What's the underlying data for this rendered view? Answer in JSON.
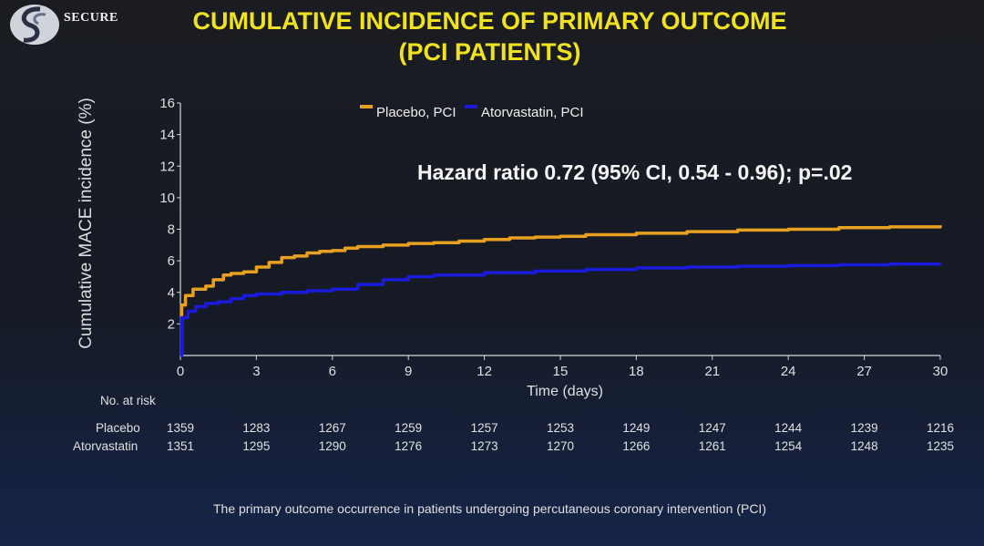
{
  "logo": {
    "text": "SECURE",
    "icon": "secure-trial-logo"
  },
  "title": {
    "line1": "CUMULATIVE INCIDENCE OF PRIMARY OUTCOME",
    "line2": "(PCI PATIENTS)"
  },
  "annotation": "Hazard ratio 0.72 (95% CI, 0.54 - 0.96); p=.02",
  "risk_table": {
    "title": "No. at risk",
    "rows": [
      {
        "label": "Placebo",
        "values": [
          "1359",
          "1283",
          "1267",
          "1259",
          "1257",
          "1253",
          "1249",
          "1247",
          "1244",
          "1239",
          "1216"
        ]
      },
      {
        "label": "Atorvastatin",
        "values": [
          "1351",
          "1295",
          "1290",
          "1276",
          "1273",
          "1270",
          "1266",
          "1261",
          "1254",
          "1248",
          "1235"
        ]
      }
    ]
  },
  "footnote": "The primary outcome occurrence in patients undergoing percutaneous coronary intervention (PCI)",
  "colors": {
    "title": "#f0e21c",
    "placebo": "#e8a020",
    "atorvastatin": "#1a1adc",
    "axis": "#d8d8d8"
  },
  "chart_data": {
    "type": "line",
    "xlabel": "Time (days)",
    "ylabel": "Cumulative MACE incidence (%)",
    "xlim": [
      0,
      30
    ],
    "ylim": [
      0,
      16
    ],
    "xticks": [
      "0",
      "3",
      "6",
      "9",
      "12",
      "15",
      "18",
      "21",
      "24",
      "27",
      "30"
    ],
    "yticks": [
      "2",
      "4",
      "6",
      "8",
      "10",
      "12",
      "14",
      "16"
    ],
    "legend_position": "top-center",
    "series": [
      {
        "name": "Placebo, PCI",
        "color": "#e8a020",
        "x": [
          0,
          0.05,
          0.2,
          0.5,
          1,
          1.3,
          1.7,
          2,
          2.5,
          3,
          3.5,
          4,
          4.5,
          5,
          5.5,
          6,
          6.5,
          7,
          8,
          9,
          10,
          11,
          12,
          13,
          14,
          15,
          16,
          18,
          20,
          22,
          24,
          26,
          28,
          30
        ],
        "y": [
          0,
          3.2,
          3.8,
          4.2,
          4.4,
          4.8,
          5.1,
          5.2,
          5.3,
          5.6,
          5.9,
          6.2,
          6.3,
          6.5,
          6.6,
          6.65,
          6.8,
          6.9,
          7.0,
          7.1,
          7.15,
          7.25,
          7.35,
          7.45,
          7.5,
          7.55,
          7.65,
          7.75,
          7.85,
          7.95,
          8.0,
          8.1,
          8.15,
          8.25
        ]
      },
      {
        "name": "Atorvastatin, PCI",
        "color": "#1a1adc",
        "x": [
          0,
          0.05,
          0.3,
          0.6,
          1,
          1.5,
          2,
          2.5,
          3,
          4,
          5,
          6,
          7,
          8,
          9,
          10,
          12,
          14,
          16,
          18,
          20,
          22,
          24,
          26,
          28,
          30
        ],
        "y": [
          0,
          2.4,
          2.8,
          3.1,
          3.3,
          3.4,
          3.6,
          3.8,
          3.9,
          4.0,
          4.1,
          4.2,
          4.5,
          4.8,
          5.0,
          5.1,
          5.25,
          5.35,
          5.45,
          5.55,
          5.6,
          5.65,
          5.7,
          5.75,
          5.8,
          5.85
        ]
      }
    ]
  }
}
